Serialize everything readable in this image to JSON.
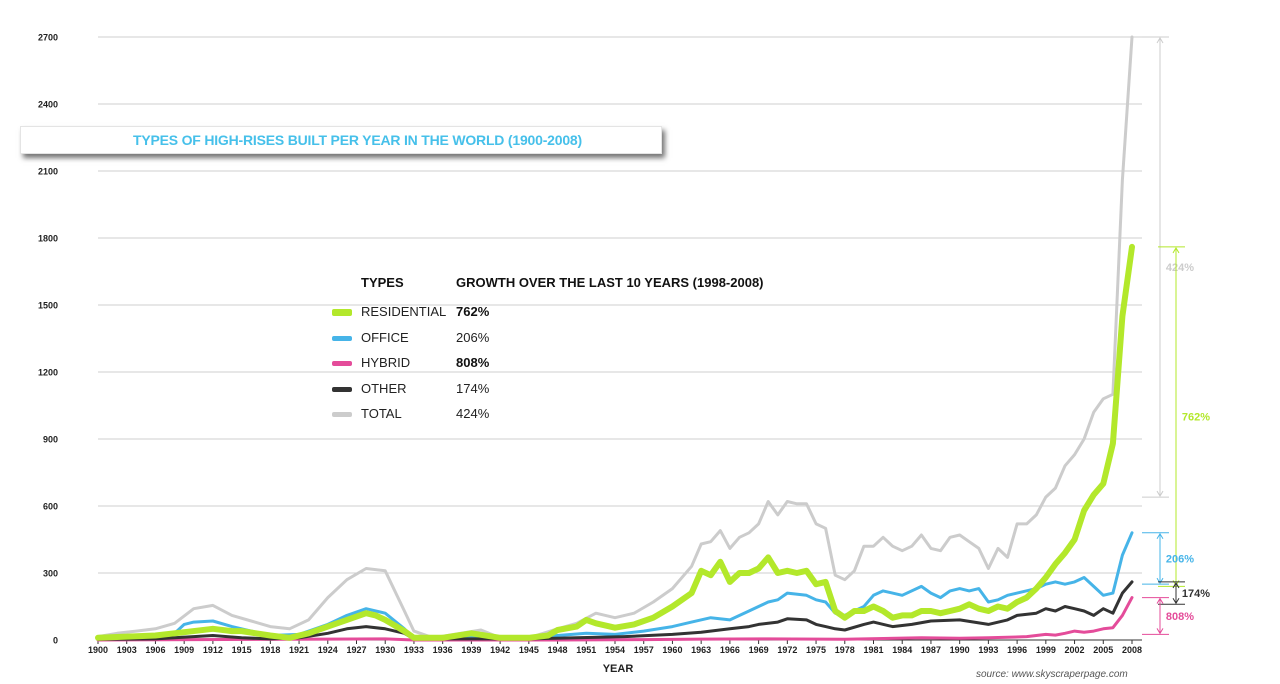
{
  "chart_data": {
    "type": "line",
    "title": "TYPES OF HIGH-RISES BUILT PER YEAR IN THE WORLD (1900-2008)",
    "xlabel": "YEAR",
    "ylabel": "",
    "xlim": [
      1900,
      2008
    ],
    "ylim": [
      0,
      2700
    ],
    "x_ticks": [
      1900,
      1903,
      1906,
      1909,
      1912,
      1915,
      1918,
      1921,
      1924,
      1927,
      1930,
      1933,
      1936,
      1939,
      1942,
      1945,
      1948,
      1951,
      1954,
      1957,
      1960,
      1963,
      1966,
      1969,
      1972,
      1975,
      1978,
      1981,
      1984,
      1987,
      1990,
      1993,
      1996,
      1999,
      2002,
      2005,
      2008
    ],
    "y_ticks": [
      0,
      300,
      600,
      900,
      1200,
      1500,
      1800,
      2100,
      2400,
      2700
    ],
    "grid": true,
    "legend": {
      "col_types": "TYPES",
      "col_growth": "GROWTH OVER THE LAST 10 YEARS (1998-2008)"
    },
    "series": [
      {
        "name": "TOTAL",
        "color": "#cccccc",
        "growth": "424%",
        "bold": false,
        "points": [
          [
            1900,
            15
          ],
          [
            1902,
            30
          ],
          [
            1904,
            40
          ],
          [
            1906,
            50
          ],
          [
            1908,
            75
          ],
          [
            1910,
            140
          ],
          [
            1912,
            155
          ],
          [
            1914,
            110
          ],
          [
            1916,
            85
          ],
          [
            1918,
            60
          ],
          [
            1920,
            50
          ],
          [
            1922,
            90
          ],
          [
            1924,
            190
          ],
          [
            1926,
            270
          ],
          [
            1928,
            320
          ],
          [
            1930,
            310
          ],
          [
            1932,
            130
          ],
          [
            1933,
            40
          ],
          [
            1935,
            10
          ],
          [
            1940,
            45
          ],
          [
            1942,
            10
          ],
          [
            1945,
            10
          ],
          [
            1948,
            50
          ],
          [
            1950,
            75
          ],
          [
            1952,
            120
          ],
          [
            1954,
            100
          ],
          [
            1956,
            120
          ],
          [
            1958,
            170
          ],
          [
            1960,
            230
          ],
          [
            1962,
            330
          ],
          [
            1963,
            430
          ],
          [
            1964,
            440
          ],
          [
            1965,
            490
          ],
          [
            1966,
            410
          ],
          [
            1967,
            460
          ],
          [
            1968,
            480
          ],
          [
            1969,
            520
          ],
          [
            1970,
            620
          ],
          [
            1971,
            560
          ],
          [
            1972,
            620
          ],
          [
            1973,
            610
          ],
          [
            1974,
            610
          ],
          [
            1975,
            520
          ],
          [
            1976,
            500
          ],
          [
            1977,
            290
          ],
          [
            1978,
            270
          ],
          [
            1979,
            310
          ],
          [
            1980,
            420
          ],
          [
            1981,
            420
          ],
          [
            1982,
            460
          ],
          [
            1983,
            420
          ],
          [
            1984,
            400
          ],
          [
            1985,
            420
          ],
          [
            1986,
            470
          ],
          [
            1987,
            410
          ],
          [
            1988,
            400
          ],
          [
            1989,
            460
          ],
          [
            1990,
            470
          ],
          [
            1991,
            440
          ],
          [
            1992,
            410
          ],
          [
            1993,
            320
          ],
          [
            1994,
            410
          ],
          [
            1995,
            370
          ],
          [
            1996,
            520
          ],
          [
            1997,
            520
          ],
          [
            1998,
            560
          ],
          [
            1999,
            640
          ],
          [
            2000,
            680
          ],
          [
            2001,
            780
          ],
          [
            2002,
            830
          ],
          [
            2003,
            900
          ],
          [
            2004,
            1020
          ],
          [
            2005,
            1080
          ],
          [
            2006,
            1100
          ],
          [
            2007,
            2060
          ],
          [
            2008,
            2700
          ]
        ]
      },
      {
        "name": "OFFICE",
        "color": "#46b4e8",
        "growth": "206%",
        "bold": false,
        "points": [
          [
            1900,
            10
          ],
          [
            1903,
            15
          ],
          [
            1906,
            20
          ],
          [
            1908,
            30
          ],
          [
            1909,
            70
          ],
          [
            1910,
            80
          ],
          [
            1912,
            85
          ],
          [
            1914,
            60
          ],
          [
            1916,
            40
          ],
          [
            1918,
            20
          ],
          [
            1921,
            25
          ],
          [
            1924,
            70
          ],
          [
            1926,
            110
          ],
          [
            1928,
            140
          ],
          [
            1930,
            120
          ],
          [
            1932,
            50
          ],
          [
            1933,
            10
          ],
          [
            1936,
            10
          ],
          [
            1940,
            15
          ],
          [
            1945,
            10
          ],
          [
            1948,
            20
          ],
          [
            1951,
            30
          ],
          [
            1954,
            25
          ],
          [
            1957,
            40
          ],
          [
            1960,
            60
          ],
          [
            1962,
            80
          ],
          [
            1964,
            100
          ],
          [
            1966,
            90
          ],
          [
            1968,
            130
          ],
          [
            1970,
            170
          ],
          [
            1971,
            180
          ],
          [
            1972,
            210
          ],
          [
            1974,
            200
          ],
          [
            1975,
            180
          ],
          [
            1976,
            170
          ],
          [
            1977,
            120
          ],
          [
            1978,
            110
          ],
          [
            1980,
            150
          ],
          [
            1981,
            200
          ],
          [
            1982,
            220
          ],
          [
            1984,
            200
          ],
          [
            1986,
            240
          ],
          [
            1987,
            210
          ],
          [
            1988,
            190
          ],
          [
            1989,
            220
          ],
          [
            1990,
            230
          ],
          [
            1991,
            220
          ],
          [
            1992,
            230
          ],
          [
            1993,
            170
          ],
          [
            1994,
            180
          ],
          [
            1995,
            200
          ],
          [
            1996,
            210
          ],
          [
            1998,
            230
          ],
          [
            1999,
            250
          ],
          [
            2000,
            260
          ],
          [
            2001,
            250
          ],
          [
            2002,
            260
          ],
          [
            2003,
            280
          ],
          [
            2004,
            240
          ],
          [
            2005,
            200
          ],
          [
            2006,
            210
          ],
          [
            2007,
            380
          ],
          [
            2008,
            480
          ]
        ]
      },
      {
        "name": "HYBRID",
        "color": "#e44c9a",
        "growth": "808%",
        "bold": true,
        "points": [
          [
            1900,
            0
          ],
          [
            1910,
            2
          ],
          [
            1920,
            3
          ],
          [
            1924,
            4
          ],
          [
            1930,
            5
          ],
          [
            1933,
            0
          ],
          [
            1948,
            0
          ],
          [
            1957,
            2
          ],
          [
            1963,
            4
          ],
          [
            1970,
            5
          ],
          [
            1978,
            3
          ],
          [
            1986,
            10
          ],
          [
            1990,
            8
          ],
          [
            1993,
            10
          ],
          [
            1995,
            12
          ],
          [
            1997,
            15
          ],
          [
            1999,
            25
          ],
          [
            2000,
            22
          ],
          [
            2001,
            30
          ],
          [
            2002,
            40
          ],
          [
            2003,
            35
          ],
          [
            2004,
            40
          ],
          [
            2005,
            50
          ],
          [
            2006,
            55
          ],
          [
            2007,
            110
          ],
          [
            2008,
            190
          ]
        ]
      },
      {
        "name": "OTHER",
        "color": "#333333",
        "growth": "174%",
        "bold": false,
        "points": [
          [
            1900,
            3
          ],
          [
            1906,
            5
          ],
          [
            1910,
            15
          ],
          [
            1912,
            20
          ],
          [
            1915,
            10
          ],
          [
            1918,
            5
          ],
          [
            1921,
            10
          ],
          [
            1924,
            30
          ],
          [
            1926,
            50
          ],
          [
            1928,
            60
          ],
          [
            1930,
            50
          ],
          [
            1932,
            30
          ],
          [
            1933,
            5
          ],
          [
            1945,
            5
          ],
          [
            1950,
            10
          ],
          [
            1955,
            15
          ],
          [
            1960,
            25
          ],
          [
            1963,
            35
          ],
          [
            1966,
            50
          ],
          [
            1968,
            60
          ],
          [
            1969,
            70
          ],
          [
            1970,
            75
          ],
          [
            1971,
            80
          ],
          [
            1972,
            95
          ],
          [
            1974,
            90
          ],
          [
            1975,
            70
          ],
          [
            1976,
            60
          ],
          [
            1977,
            50
          ],
          [
            1978,
            45
          ],
          [
            1980,
            70
          ],
          [
            1981,
            80
          ],
          [
            1983,
            60
          ],
          [
            1985,
            70
          ],
          [
            1987,
            85
          ],
          [
            1990,
            90
          ],
          [
            1993,
            70
          ],
          [
            1995,
            90
          ],
          [
            1996,
            110
          ],
          [
            1998,
            120
          ],
          [
            1999,
            140
          ],
          [
            2000,
            130
          ],
          [
            2001,
            150
          ],
          [
            2002,
            140
          ],
          [
            2003,
            130
          ],
          [
            2004,
            110
          ],
          [
            2005,
            140
          ],
          [
            2006,
            120
          ],
          [
            2007,
            210
          ],
          [
            2008,
            260
          ]
        ]
      },
      {
        "name": "RESIDENTIAL",
        "color": "#b3e82b",
        "growth": "762%",
        "bold": true,
        "points": [
          [
            1900,
            10
          ],
          [
            1903,
            15
          ],
          [
            1906,
            20
          ],
          [
            1909,
            35
          ],
          [
            1912,
            50
          ],
          [
            1914,
            40
          ],
          [
            1915,
            40
          ],
          [
            1918,
            20
          ],
          [
            1920,
            10
          ],
          [
            1922,
            30
          ],
          [
            1924,
            60
          ],
          [
            1926,
            90
          ],
          [
            1928,
            120
          ],
          [
            1929,
            110
          ],
          [
            1930,
            90
          ],
          [
            1932,
            40
          ],
          [
            1933,
            10
          ],
          [
            1936,
            10
          ],
          [
            1939,
            30
          ],
          [
            1942,
            10
          ],
          [
            1945,
            10
          ],
          [
            1947,
            20
          ],
          [
            1948,
            45
          ],
          [
            1950,
            60
          ],
          [
            1951,
            90
          ],
          [
            1952,
            75
          ],
          [
            1954,
            55
          ],
          [
            1956,
            70
          ],
          [
            1958,
            100
          ],
          [
            1960,
            150
          ],
          [
            1962,
            210
          ],
          [
            1963,
            310
          ],
          [
            1964,
            290
          ],
          [
            1965,
            350
          ],
          [
            1966,
            260
          ],
          [
            1967,
            300
          ],
          [
            1968,
            300
          ],
          [
            1969,
            320
          ],
          [
            1970,
            370
          ],
          [
            1971,
            300
          ],
          [
            1972,
            310
          ],
          [
            1973,
            300
          ],
          [
            1974,
            310
          ],
          [
            1975,
            250
          ],
          [
            1976,
            260
          ],
          [
            1977,
            130
          ],
          [
            1978,
            100
          ],
          [
            1979,
            130
          ],
          [
            1980,
            130
          ],
          [
            1981,
            150
          ],
          [
            1982,
            130
          ],
          [
            1983,
            100
          ],
          [
            1984,
            110
          ],
          [
            1985,
            110
          ],
          [
            1986,
            130
          ],
          [
            1987,
            130
          ],
          [
            1988,
            120
          ],
          [
            1989,
            130
          ],
          [
            1990,
            140
          ],
          [
            1991,
            160
          ],
          [
            1992,
            140
          ],
          [
            1993,
            130
          ],
          [
            1994,
            150
          ],
          [
            1995,
            140
          ],
          [
            1996,
            170
          ],
          [
            1997,
            190
          ],
          [
            1998,
            230
          ],
          [
            1999,
            280
          ],
          [
            2000,
            340
          ],
          [
            2001,
            390
          ],
          [
            2002,
            450
          ],
          [
            2003,
            580
          ],
          [
            2004,
            650
          ],
          [
            2005,
            700
          ],
          [
            2006,
            880
          ],
          [
            2007,
            1450
          ],
          [
            2008,
            1760
          ]
        ]
      }
    ],
    "annotations": [
      {
        "label": "424%",
        "color": "#cccccc",
        "from": 640,
        "to": 2700,
        "side": "right"
      },
      {
        "label": "762%",
        "color": "#b3e82b",
        "from": 240,
        "to": 1760,
        "side": "right"
      },
      {
        "label": "206%",
        "color": "#46b4e8",
        "from": 250,
        "to": 480,
        "side": "right"
      },
      {
        "label": "174%",
        "color": "#333333",
        "from": 160,
        "to": 260,
        "side": "right"
      },
      {
        "label": "808%",
        "color": "#e44c9a",
        "from": 25,
        "to": 190,
        "side": "right"
      }
    ],
    "source": "source: www.skyscraperpage.com"
  }
}
